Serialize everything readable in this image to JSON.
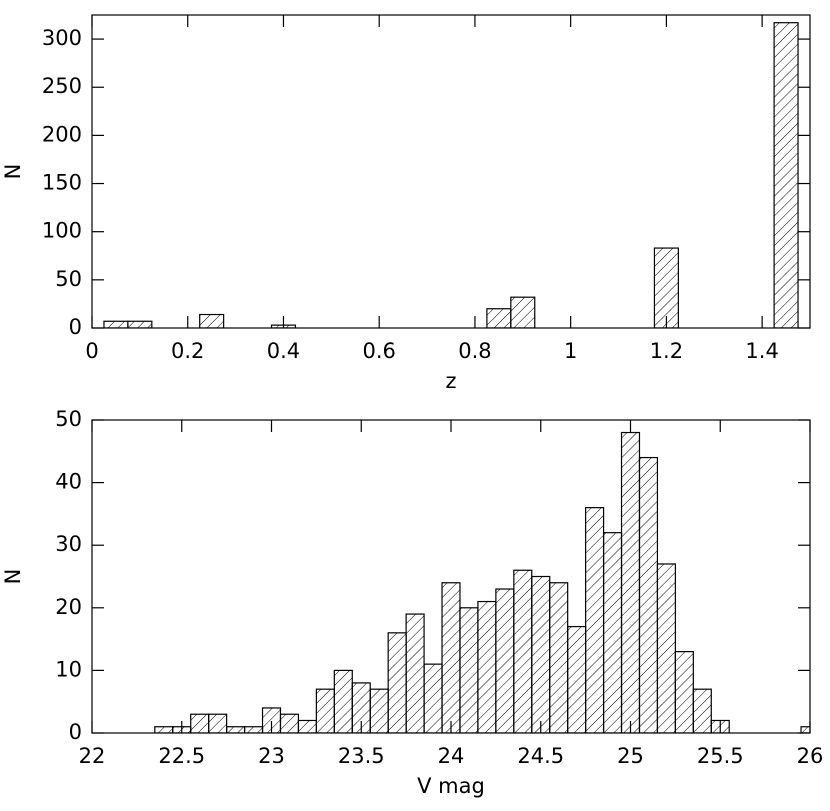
{
  "chart_data": [
    {
      "type": "histogram",
      "xlabel": "z",
      "ylabel": "N",
      "bins": [
        0.025,
        0.075,
        0.125,
        0.175,
        0.225,
        0.275,
        0.325,
        0.375,
        0.425,
        0.475,
        0.525,
        0.575,
        0.625,
        0.675,
        0.725,
        0.775,
        0.825,
        0.875,
        0.925,
        0.975,
        1.025,
        1.075,
        1.125,
        1.175,
        1.225,
        1.275,
        1.325,
        1.375,
        1.425,
        1.475
      ],
      "values": [
        7,
        7,
        0,
        0,
        14,
        0,
        0,
        3,
        0,
        0,
        0,
        0,
        0,
        0,
        0,
        0,
        20,
        32,
        0,
        0,
        0,
        0,
        0,
        83,
        0,
        0,
        0,
        0,
        317
      ],
      "xlim": [
        0,
        1.5
      ],
      "ylim": [
        0,
        325
      ],
      "xticks": [
        0,
        0.2,
        0.4,
        0.6,
        0.8,
        1,
        1.2,
        1.4
      ],
      "yticks": [
        0,
        50,
        100,
        150,
        200,
        250,
        300
      ]
    },
    {
      "type": "histogram",
      "xlabel": "V mag",
      "ylabel": "N",
      "bins": [
        22.35,
        22.45,
        22.55,
        22.65,
        22.75,
        22.85,
        22.95,
        23.05,
        23.15,
        23.25,
        23.35,
        23.45,
        23.55,
        23.65,
        23.75,
        23.85,
        23.95,
        24.05,
        24.15,
        24.25,
        24.35,
        24.45,
        24.55,
        24.65,
        24.75,
        24.85,
        24.95,
        25.05,
        25.15,
        25.25,
        25.35,
        25.45,
        25.55,
        25.65,
        25.75,
        25.85,
        25.95,
        26.05
      ],
      "values": [
        1,
        1,
        3,
        3,
        1,
        1,
        4,
        3,
        2,
        7,
        10,
        8,
        7,
        16,
        19,
        11,
        24,
        20,
        21,
        23,
        26,
        25,
        24,
        17,
        36,
        32,
        48,
        44,
        27,
        13,
        7,
        2,
        0,
        0,
        0,
        0,
        1
      ],
      "xlim": [
        22,
        26
      ],
      "ylim": [
        0,
        50
      ],
      "xticks": [
        22,
        22.5,
        23,
        23.5,
        24,
        24.5,
        25,
        25.5,
        26
      ],
      "yticks": [
        0,
        10,
        20,
        30,
        40,
        50
      ]
    }
  ]
}
